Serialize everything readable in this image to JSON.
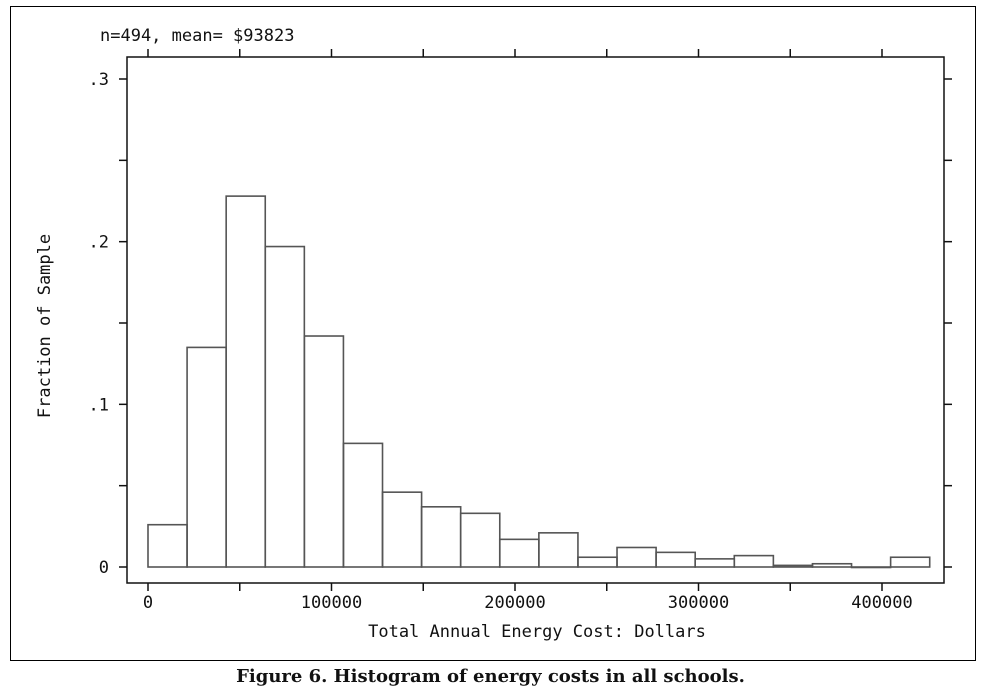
{
  "chart_data": {
    "type": "bar",
    "title": "n=494, mean= $93823",
    "xlabel": "Total Annual Energy Cost: Dollars",
    "ylabel": "Fraction of Sample",
    "xlim": [
      0,
      440000
    ],
    "ylim": [
      0,
      0.31
    ],
    "x_ticks": [
      0,
      100000,
      200000,
      300000,
      400000
    ],
    "x_tick_labels": [
      "0",
      "100000",
      "200000",
      "300000",
      "400000"
    ],
    "y_ticks": [
      0,
      0.1,
      0.2,
      0.3
    ],
    "y_tick_labels": [
      "0",
      ".1",
      ".2",
      ".3"
    ],
    "bin_width": 21300,
    "bin_starts": [
      0,
      21300,
      42600,
      63900,
      85200,
      106500,
      127800,
      149100,
      170400,
      191700,
      213000,
      234300,
      255600,
      276900,
      298200,
      319500,
      340800,
      362100,
      383400,
      404700
    ],
    "values": [
      0.026,
      0.135,
      0.228,
      0.197,
      0.142,
      0.076,
      0.046,
      0.037,
      0.033,
      0.017,
      0.021,
      0.006,
      0.012,
      0.009,
      0.005,
      0.007,
      0.001,
      0.002,
      0.0,
      0.006
    ],
    "grid": false,
    "legend": "none"
  },
  "caption": "Figure 6. Histogram of energy costs in all schools."
}
